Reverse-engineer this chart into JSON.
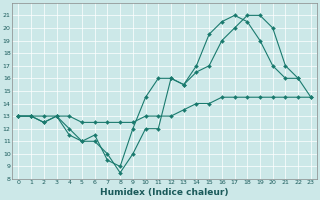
{
  "xlabel": "Humidex (Indice chaleur)",
  "bg_color": "#cce8e8",
  "line_color": "#1a7a6e",
  "grid_color": "#b0d4d4",
  "xlim": [
    -0.5,
    23.5
  ],
  "ylim": [
    8,
    22
  ],
  "xticks": [
    0,
    1,
    2,
    3,
    4,
    5,
    6,
    7,
    8,
    9,
    10,
    11,
    12,
    13,
    14,
    15,
    16,
    17,
    18,
    19,
    20,
    21,
    22,
    23
  ],
  "yticks": [
    8,
    9,
    10,
    11,
    12,
    13,
    14,
    15,
    16,
    17,
    18,
    19,
    20,
    21
  ],
  "series": [
    {
      "x": [
        0,
        1,
        2,
        3,
        4,
        5,
        6,
        7,
        8,
        9,
        10,
        11,
        12,
        13,
        14,
        15,
        16,
        17,
        18,
        19,
        20,
        21,
        22,
        23
      ],
      "y": [
        13,
        13,
        12.5,
        13,
        12,
        11,
        11,
        10,
        8.5,
        10,
        12,
        12,
        16,
        15.5,
        16.5,
        17,
        19,
        20,
        21,
        21,
        20,
        17,
        16,
        14.5
      ]
    },
    {
      "x": [
        0,
        1,
        2,
        3,
        4,
        5,
        6,
        7,
        8,
        9,
        10,
        11,
        12,
        13,
        14,
        15,
        16,
        17,
        18,
        19,
        20,
        21,
        22
      ],
      "y": [
        13,
        13,
        12.5,
        13,
        11.5,
        11,
        11.5,
        9.5,
        9,
        12,
        14.5,
        16,
        16,
        15.5,
        17,
        19.5,
        20.5,
        21,
        20.5,
        19,
        17,
        16,
        16
      ]
    },
    {
      "x": [
        0,
        1,
        2,
        3,
        4,
        5,
        6,
        7,
        8,
        9,
        10,
        11,
        12,
        13,
        14,
        15,
        16,
        17,
        18,
        19,
        20,
        21,
        22,
        23
      ],
      "y": [
        13,
        13,
        13,
        13,
        13,
        12.5,
        12.5,
        12.5,
        12.5,
        12.5,
        13,
        13,
        13,
        13.5,
        14,
        14,
        14.5,
        14.5,
        14.5,
        14.5,
        14.5,
        14.5,
        14.5,
        14.5
      ]
    }
  ]
}
